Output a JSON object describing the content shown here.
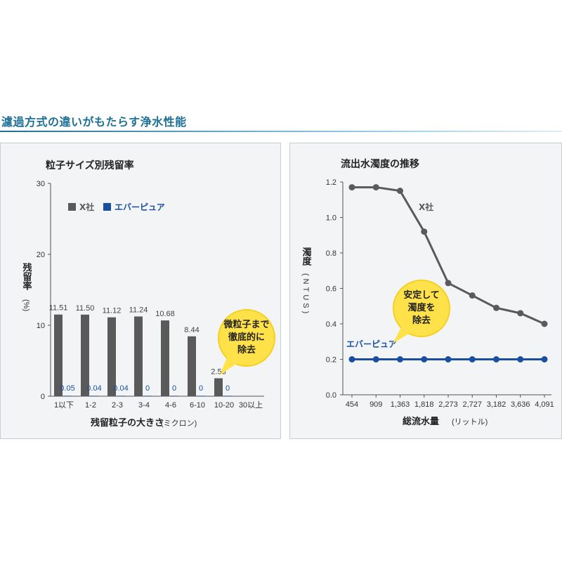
{
  "page": {
    "heading": "濾過方式の違いがもたらす浄水性能"
  },
  "colors": {
    "heading": "#1e6f96",
    "series_x": "#5a5a5a",
    "series_ever": "#1a4fa0",
    "bubble": "#ffe24a"
  },
  "chart_data": [
    {
      "type": "bar",
      "title": "粒子サイズ別残留率",
      "xlabel_main": "残留粒子の大きさ",
      "xlabel_sub": "(ミクロン)",
      "ylabel_main": "残留率",
      "ylabel_sub": "(%)",
      "ylim": [
        0,
        30
      ],
      "yticks": [
        0,
        10,
        20,
        30
      ],
      "categories": [
        "1以下",
        "1-2",
        "2-3",
        "3-4",
        "4-6",
        "6-10",
        "10-20",
        "30以上"
      ],
      "series": [
        {
          "name": "X社",
          "values": [
            11.51,
            11.5,
            11.12,
            11.24,
            10.68,
            8.44,
            2.53,
            null
          ],
          "labels": [
            "11.51",
            "11.50",
            "11.12",
            "11.24",
            "10.68",
            "8.44",
            "2.53",
            ""
          ]
        },
        {
          "name": "エバーピュア",
          "values": [
            0.05,
            0.04,
            0.04,
            0,
            0,
            0,
            0,
            null
          ],
          "labels": [
            "0.05",
            "0.04",
            "0.04",
            "0",
            "0",
            "0",
            "0",
            ""
          ]
        }
      ],
      "legend_position": "top-left",
      "callout": [
        "微粒子まで",
        "徹底的に",
        "除去"
      ]
    },
    {
      "type": "line",
      "title": "流出水濁度の推移",
      "xlabel_main": "総流水量",
      "xlabel_sub": "(リットル)",
      "ylabel_main": "濁度",
      "ylabel_sub": "(NTUS)",
      "ylim": [
        0,
        1.2
      ],
      "yticks": [
        0.0,
        0.2,
        0.4,
        0.6,
        0.8,
        1.0,
        1.2
      ],
      "ytick_labels": [
        "0.0",
        "0.2",
        "0.4",
        "0.6",
        "0.8",
        "1.0",
        "1.2"
      ],
      "x": [
        "454",
        "909",
        "1,363",
        "1,818",
        "2,273",
        "2,727",
        "3,182",
        "3,636",
        "4,091"
      ],
      "series": [
        {
          "name": "X社",
          "values": [
            1.17,
            1.17,
            1.15,
            0.92,
            0.63,
            0.56,
            0.49,
            0.46,
            0.4
          ]
        },
        {
          "name": "エバーピュア",
          "values": [
            0.2,
            0.2,
            0.2,
            0.2,
            0.2,
            0.2,
            0.2,
            0.2,
            0.2
          ]
        }
      ],
      "callout": [
        "安定して",
        "濁度を",
        "除去"
      ]
    }
  ]
}
